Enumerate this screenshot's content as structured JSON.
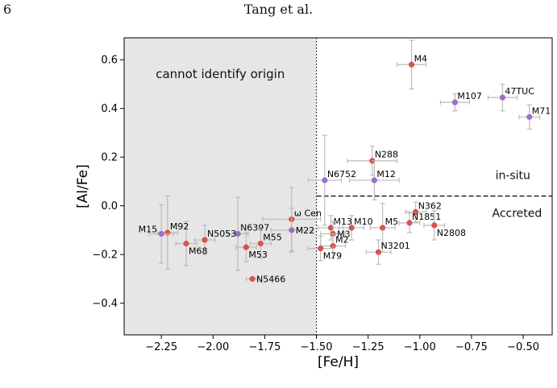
{
  "page": {
    "page_number": "6",
    "running_head": "Tang et al."
  },
  "chart_data": {
    "type": "scatter",
    "xlabel": "[Fe/H]",
    "ylabel": "[Al/Fe]",
    "xlim": [
      -2.43,
      -0.36
    ],
    "ylim": [
      -0.53,
      0.69
    ],
    "xticks": [
      -2.25,
      -2.0,
      -1.75,
      -1.5,
      -1.25,
      -1.0,
      -0.75,
      -0.5
    ],
    "xtick_labels": [
      "−2.25",
      "−2.00",
      "−1.75",
      "−1.50",
      "−1.25",
      "−1.00",
      "−0.75",
      "−0.50"
    ],
    "yticks": [
      -0.4,
      -0.2,
      0.0,
      0.2,
      0.4,
      0.6
    ],
    "ytick_labels": [
      "−0.4",
      "−0.2",
      "0.0",
      "0.2",
      "0.4",
      "0.6"
    ],
    "grid": false,
    "shaded_region": {
      "x_from": -2.43,
      "x_to": -1.5,
      "color": "#e6e6e6",
      "label": "cannot identify origin"
    },
    "vertical_line": {
      "x": -1.5,
      "style": "dotted"
    },
    "horizontal_line": {
      "y": 0.04,
      "x_from": -1.5,
      "x_to": -0.36,
      "style": "dashed"
    },
    "region_labels": [
      {
        "text": "in-situ",
        "x": -0.55,
        "y": 0.11
      },
      {
        "text": "Accreted",
        "x": -0.53,
        "y": -0.045
      }
    ],
    "colors": {
      "red": "#d9534f",
      "purple": "#9b6fc9",
      "errorbar": "#bbbbbb"
    },
    "points": [
      {
        "name": "M4",
        "x": -1.04,
        "y": 0.58,
        "xerr": 0.07,
        "yerr": 0.1,
        "color": "red",
        "lab": "ne"
      },
      {
        "name": "M107",
        "x": -0.83,
        "y": 0.425,
        "xerr": 0.07,
        "yerr": 0.035,
        "color": "purple",
        "lab": "ne"
      },
      {
        "name": "47TUC",
        "x": -0.6,
        "y": 0.445,
        "xerr": 0.07,
        "yerr": 0.055,
        "color": "purple",
        "lab": "ne"
      },
      {
        "name": "M71",
        "x": -0.47,
        "y": 0.365,
        "xerr": 0.05,
        "yerr": 0.05,
        "color": "purple",
        "lab": "ne"
      },
      {
        "name": "N288",
        "x": -1.23,
        "y": 0.185,
        "xerr": 0.12,
        "yerr": 0.06,
        "color": "red",
        "lab": "ne"
      },
      {
        "name": "N6752",
        "x": -1.46,
        "y": 0.105,
        "xerr": 0.08,
        "yerr": 0.185,
        "color": "purple",
        "lab": "ne"
      },
      {
        "name": "M12",
        "x": -1.22,
        "y": 0.105,
        "xerr": 0.12,
        "yerr": 0.08,
        "color": "purple",
        "lab": "ne"
      },
      {
        "name": "N362",
        "x": -1.02,
        "y": -0.025,
        "xerr": 0.05,
        "yerr": 0.04,
        "color": "red",
        "lab": "ne"
      },
      {
        "name": "N1851",
        "x": -1.05,
        "y": -0.07,
        "xerr": 0.05,
        "yerr": 0.04,
        "color": "red",
        "lab": "ne"
      },
      {
        "name": "N2808",
        "x": -0.93,
        "y": -0.08,
        "xerr": 0.05,
        "yerr": 0.06,
        "color": "red",
        "lab": "se"
      },
      {
        "name": "M5",
        "x": -1.18,
        "y": -0.09,
        "xerr": 0.06,
        "yerr": 0.1,
        "color": "red",
        "lab": "ne"
      },
      {
        "name": "M10",
        "x": -1.33,
        "y": -0.09,
        "xerr": 0.06,
        "yerr": 0.05,
        "color": "red",
        "lab": "ne"
      },
      {
        "name": "M13",
        "x": -1.43,
        "y": -0.09,
        "xerr": 0.06,
        "yerr": 0.05,
        "color": "red",
        "lab": "ne"
      },
      {
        "name": "M3",
        "x": -1.42,
        "y": -0.115,
        "xerr": 0.06,
        "yerr": 0.05,
        "color": "red",
        "lab": "e"
      },
      {
        "name": "M2",
        "x": -1.42,
        "y": -0.165,
        "xerr": 0.06,
        "yerr": 0.05,
        "color": "red",
        "lab": "ne"
      },
      {
        "name": "M79",
        "x": -1.48,
        "y": -0.175,
        "xerr": 0.06,
        "yerr": 0.05,
        "color": "red",
        "lab": "se"
      },
      {
        "name": "N3201",
        "x": -1.2,
        "y": -0.19,
        "xerr": 0.06,
        "yerr": 0.05,
        "color": "red",
        "lab": "ne"
      },
      {
        "name": "ω Cen",
        "x": -1.62,
        "y": -0.055,
        "xerr": 0.14,
        "yerr": 0.13,
        "color": "red",
        "lab": "ne"
      },
      {
        "name": "M22",
        "x": -1.62,
        "y": -0.1,
        "xerr": 0.1,
        "yerr": 0.09,
        "color": "purple",
        "lab": "e"
      },
      {
        "name": "N6397",
        "x": -1.88,
        "y": -0.115,
        "xerr": 0.05,
        "yerr": 0.15,
        "color": "purple",
        "lab": "ne"
      },
      {
        "name": "M55",
        "x": -1.77,
        "y": -0.155,
        "xerr": 0.05,
        "yerr": 0.06,
        "color": "red",
        "lab": "ne"
      },
      {
        "name": "M53",
        "x": -1.84,
        "y": -0.17,
        "xerr": 0.05,
        "yerr": 0.06,
        "color": "red",
        "lab": "se"
      },
      {
        "name": "N5466",
        "x": -1.81,
        "y": -0.3,
        "xerr": 0.03,
        "yerr": 0.0,
        "color": "red",
        "lab": "e"
      },
      {
        "name": "N5053",
        "x": -2.04,
        "y": -0.14,
        "xerr": 0.05,
        "yerr": 0.06,
        "color": "red",
        "lab": "ne"
      },
      {
        "name": "M68",
        "x": -2.13,
        "y": -0.155,
        "xerr": 0.05,
        "yerr": 0.09,
        "color": "red",
        "lab": "se"
      },
      {
        "name": "M92",
        "x": -2.22,
        "y": -0.11,
        "xerr": 0.05,
        "yerr": 0.15,
        "color": "red",
        "lab": "ne"
      },
      {
        "name": "M15",
        "x": -2.25,
        "y": -0.115,
        "xerr": 0.06,
        "yerr": 0.12,
        "color": "purple",
        "lab": "w"
      }
    ]
  }
}
